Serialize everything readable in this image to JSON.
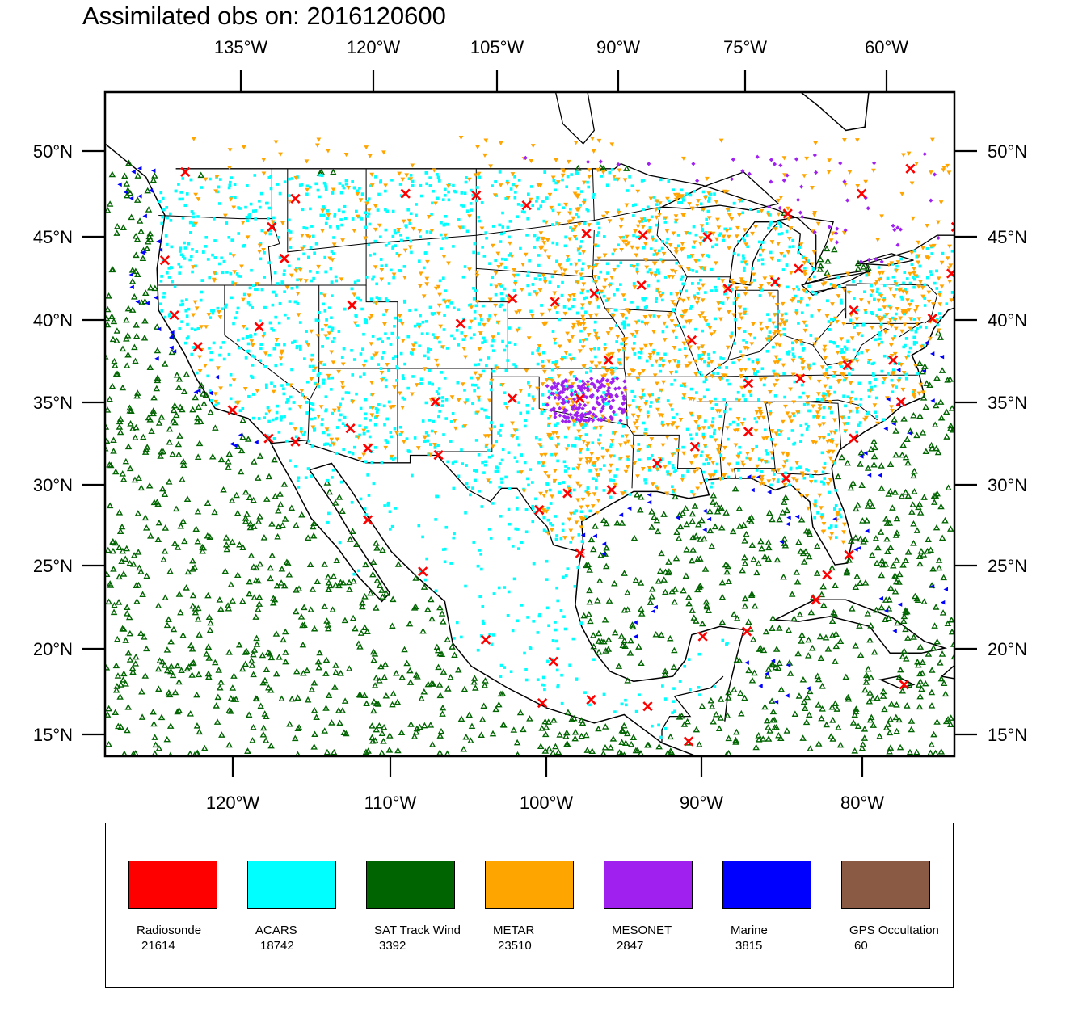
{
  "title": "Assimilated obs on: 2016120600",
  "map": {
    "lon_range": [
      -127.6,
      -73.6
    ],
    "lat_range": [
      13.7,
      53.6
    ],
    "top_lon_ticks": [
      {
        "lon": -135,
        "label": "135°W"
      },
      {
        "lon": -120,
        "label": "120°W"
      },
      {
        "lon": -105,
        "label": "105°W"
      },
      {
        "lon": -90,
        "label": "90°W"
      },
      {
        "lon": -75,
        "label": "75°W"
      },
      {
        "lon": -60,
        "label": "60°W"
      }
    ],
    "bottom_lon_ticks": [
      {
        "lon": -120,
        "label": "120°W"
      },
      {
        "lon": -110,
        "label": "110°W"
      },
      {
        "lon": -100,
        "label": "100°W"
      },
      {
        "lon": -90,
        "label": "90°W"
      },
      {
        "lon": -80,
        "label": "80°W"
      }
    ],
    "lat_ticks": [
      {
        "lat": 50,
        "label": "50°N"
      },
      {
        "lat": 45,
        "label": "45°N"
      },
      {
        "lat": 40,
        "label": "40°N"
      },
      {
        "lat": 35,
        "label": "35°N"
      },
      {
        "lat": 30,
        "label": "30°N"
      },
      {
        "lat": 25,
        "label": "25°N"
      },
      {
        "lat": 20,
        "label": "20°N"
      },
      {
        "lat": 15,
        "label": "15°N"
      }
    ]
  },
  "legend": [
    {
      "name": "Radiosonde",
      "count": "21614",
      "color": "#ff0000",
      "marker": "x"
    },
    {
      "name": "ACARS",
      "count": "18742",
      "color": "#00ffff",
      "marker": "dot"
    },
    {
      "name": "SAT Track Wind",
      "count": "3392",
      "color": "#006400",
      "marker": "triangle-up"
    },
    {
      "name": "METAR",
      "count": "23510",
      "color": "#ffa500",
      "marker": "triangle-down"
    },
    {
      "name": "MESONET",
      "count": "2847",
      "color": "#a020f0",
      "marker": "diamond"
    },
    {
      "name": "Marine",
      "count": "3815",
      "color": "#0000ff",
      "marker": "triangle-left"
    },
    {
      "name": "GPS Occultation",
      "count": "60",
      "color": "#8b5a44",
      "marker": "square"
    }
  ]
}
